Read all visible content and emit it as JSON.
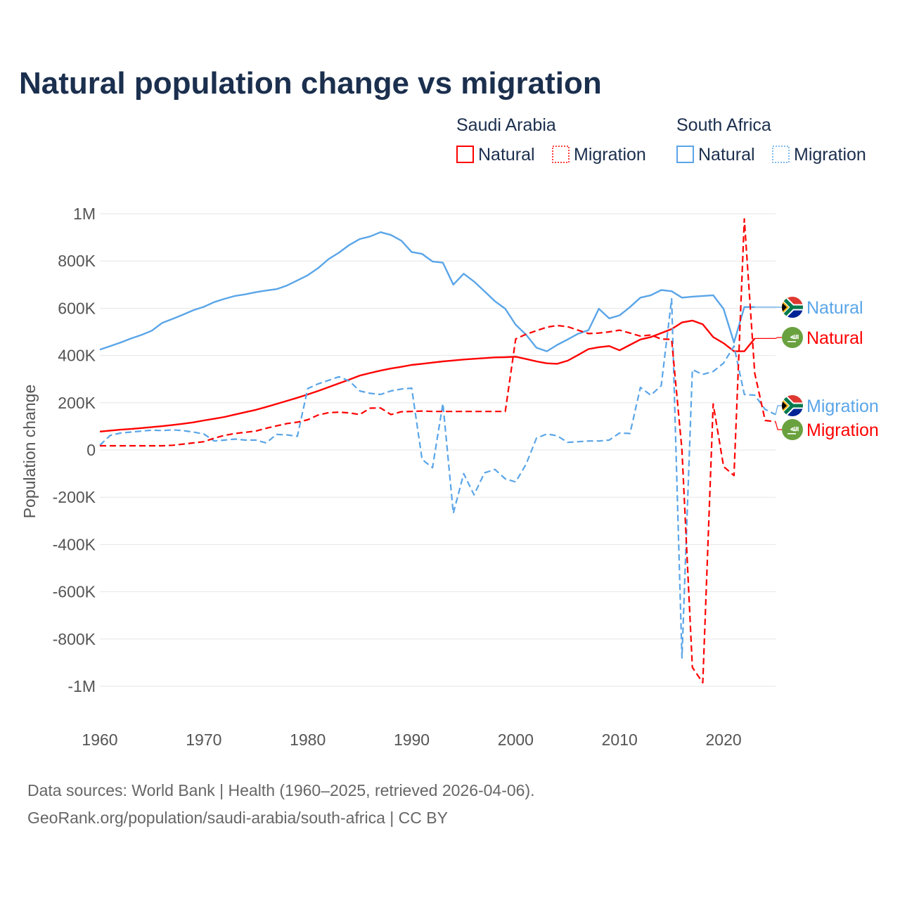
{
  "chart_data": {
    "type": "line",
    "title": "Natural population change vs migration",
    "xlabel": "",
    "ylabel": "Population change",
    "xlim": [
      1960,
      2025
    ],
    "ylim": [
      -1000000,
      1000000
    ],
    "x_ticks": [
      1960,
      1970,
      1980,
      1990,
      2000,
      2010,
      2020
    ],
    "x_tick_labels": [
      "1960",
      "1970",
      "1980",
      "1990",
      "2000",
      "2010",
      "2020"
    ],
    "y_ticks": [
      1000000,
      800000,
      600000,
      400000,
      200000,
      0,
      -200000,
      -400000,
      -600000,
      -800000,
      -1000000
    ],
    "y_tick_labels": [
      "1M",
      "800K",
      "600K",
      "400K",
      "200K",
      "0",
      "-200K",
      "-400K",
      "-600K",
      "-800K",
      "-1M"
    ],
    "grid": true,
    "legend_placement": "top-right",
    "legend_groups": [
      {
        "country": "Saudi Arabia",
        "items": [
          "Natural",
          "Migration"
        ]
      },
      {
        "country": "South Africa",
        "items": [
          "Natural",
          "Migration"
        ]
      }
    ],
    "unit_note": "values in thousands",
    "series": [
      {
        "name": "South Africa Natural",
        "country": "South Africa",
        "kind": "Natural",
        "end_label": "Natural",
        "color": "#5aa5e8",
        "dash": false,
        "flag": "south-africa",
        "start_year": 1960,
        "values": [
          425,
          440,
          455,
          472,
          487,
          505,
          538,
          555,
          573,
          592,
          606,
          626,
          640,
          652,
          659,
          668,
          675,
          681,
          696,
          718,
          740,
          770,
          808,
          835,
          868,
          893,
          904,
          922,
          910,
          886,
          838,
          830,
          798,
          793,
          700,
          746,
          713,
          672,
          630,
          598,
          530,
          488,
          433,
          418,
          445,
          468,
          492,
          507,
          598,
          557,
          570,
          605,
          645,
          655,
          677,
          672,
          645,
          649,
          652,
          655,
          597,
          455,
          605,
          605
        ]
      },
      {
        "name": "Saudi Arabia Natural",
        "country": "Saudi Arabia",
        "kind": "Natural",
        "end_label": "Natural",
        "color": "#ff0000",
        "dash": false,
        "flag": "saudi-arabia",
        "start_year": 1960,
        "values": [
          78,
          82,
          86,
          89,
          93,
          97,
          101,
          106,
          111,
          117,
          125,
          132,
          140,
          150,
          160,
          170,
          182,
          195,
          208,
          221,
          235,
          250,
          266,
          282,
          298,
          315,
          326,
          336,
          345,
          352,
          360,
          365,
          370,
          375,
          379,
          383,
          386,
          389,
          392,
          393,
          395,
          385,
          375,
          367,
          365,
          378,
          402,
          427,
          435,
          440,
          422,
          445,
          468,
          478,
          495,
          512,
          540,
          548,
          532,
          478,
          452,
          418,
          418,
          472
        ]
      },
      {
        "name": "South Africa Migration",
        "country": "South Africa",
        "kind": "Migration",
        "end_label": "Migration",
        "color": "#5aa5e8",
        "dash": true,
        "flag": "south-africa",
        "start_year": 1960,
        "values": [
          20,
          62,
          72,
          76,
          80,
          84,
          82,
          85,
          82,
          76,
          68,
          38,
          42,
          46,
          42,
          42,
          30,
          66,
          64,
          58,
          260,
          280,
          295,
          310,
          292,
          250,
          240,
          235,
          250,
          258,
          262,
          -40,
          -75,
          197,
          -268,
          -100,
          -190,
          -97,
          -82,
          -122,
          -135,
          -60,
          50,
          68,
          60,
          32,
          35,
          38,
          38,
          42,
          72,
          70,
          265,
          232,
          272,
          640,
          -880,
          340,
          320,
          332,
          368,
          440,
          235,
          232,
          172,
          150
        ]
      },
      {
        "name": "Saudi Arabia Migration",
        "country": "Saudi Arabia",
        "kind": "Migration",
        "end_label": "Migration",
        "color": "#ff0000",
        "dash": true,
        "flag": "saudi-arabia",
        "start_year": 1960,
        "values": [
          18,
          18,
          18,
          18,
          18,
          18,
          18,
          20,
          25,
          30,
          35,
          50,
          62,
          70,
          75,
          80,
          92,
          102,
          112,
          118,
          128,
          148,
          158,
          160,
          157,
          150,
          177,
          178,
          150,
          162,
          163,
          165,
          163,
          163,
          163,
          163,
          163,
          163,
          163,
          163,
          470,
          490,
          505,
          520,
          527,
          522,
          507,
          493,
          495,
          500,
          507,
          495,
          482,
          487,
          470,
          468,
          0,
          -920,
          -985,
          195,
          -70,
          -108,
          978,
          325,
          125,
          120
        ]
      }
    ]
  },
  "colors": {
    "saudi": "#ff0000",
    "south_africa": "#5aa5e8",
    "title": "#1b2f4e"
  },
  "footer": {
    "line1": "Data sources: World Bank | Health (1960–2025, retrieved 2026-04-06).",
    "line2": "GeoRank.org/population/saudi-arabia/south-africa | CC BY"
  }
}
